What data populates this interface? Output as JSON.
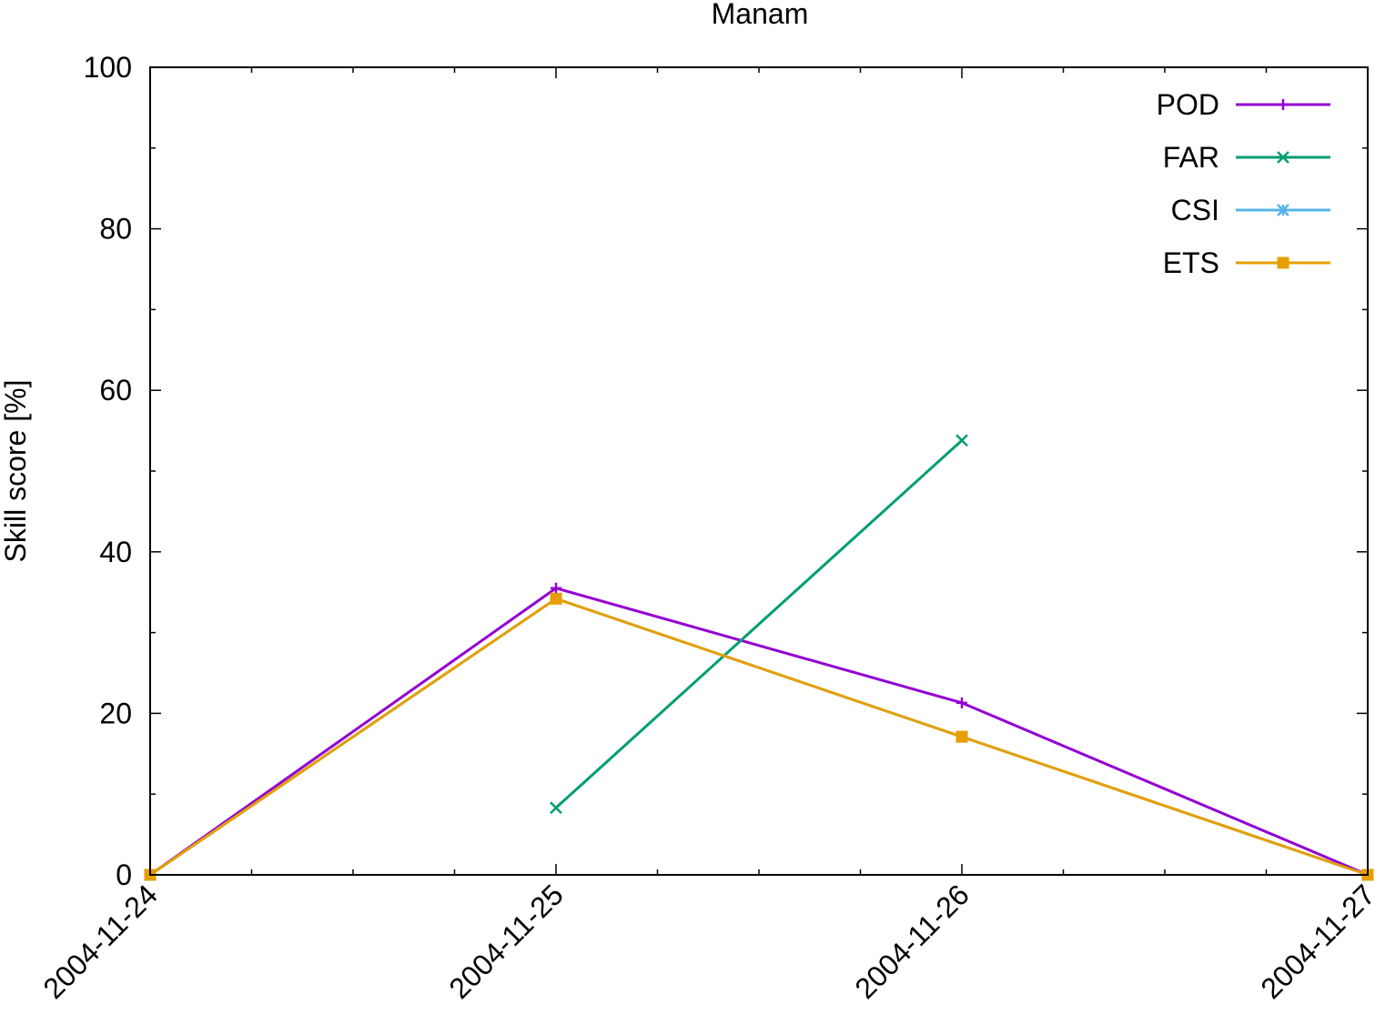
{
  "chart_data": {
    "type": "line",
    "title": "Manam",
    "xlabel": "",
    "ylabel": "Skill score [%]",
    "ylim": [
      0,
      100
    ],
    "yticks": [
      0,
      20,
      40,
      60,
      80,
      100
    ],
    "xlim": [
      "2004-11-24",
      "2004-11-27"
    ],
    "xticks": [
      "2004-11-24",
      "2004-11-25",
      "2004-11-26",
      "2004-11-27"
    ],
    "grid": false,
    "legend_position": "top-right",
    "series": [
      {
        "name": "POD",
        "color": "#9400d3",
        "marker": "plus",
        "points": [
          {
            "x": "2004-11-24",
            "y": 0
          },
          {
            "x": "2004-11-25",
            "y": 35.5
          },
          {
            "x": "2004-11-26",
            "y": 21.3
          },
          {
            "x": "2004-11-27",
            "y": 0
          }
        ]
      },
      {
        "name": "FAR",
        "color": "#009e73",
        "marker": "cross",
        "points": [
          {
            "x": "2004-11-25",
            "y": 8.3
          },
          {
            "x": "2004-11-26",
            "y": 53.8
          }
        ]
      },
      {
        "name": "CSI",
        "color": "#56b4e9",
        "marker": "star",
        "points": [
          {
            "x": "2004-11-24",
            "y": 0
          },
          {
            "x": "2004-11-25",
            "y": 34.2
          },
          {
            "x": "2004-11-26",
            "y": 17.1
          },
          {
            "x": "2004-11-27",
            "y": 0
          }
        ]
      },
      {
        "name": "ETS",
        "color": "#e69f00",
        "marker": "square",
        "points": [
          {
            "x": "2004-11-24",
            "y": 0
          },
          {
            "x": "2004-11-25",
            "y": 34.2
          },
          {
            "x": "2004-11-26",
            "y": 17.1
          },
          {
            "x": "2004-11-27",
            "y": 0
          }
        ]
      }
    ]
  }
}
